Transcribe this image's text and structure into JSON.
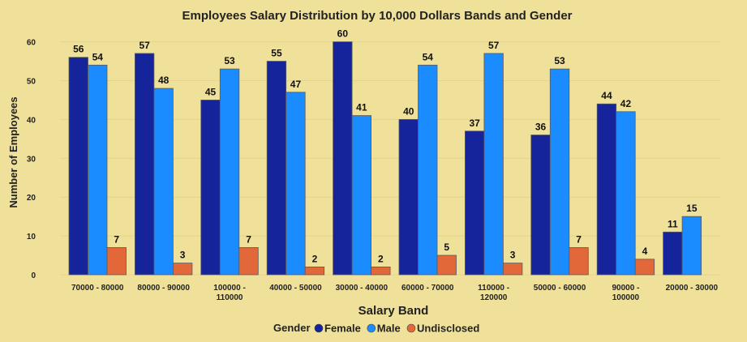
{
  "chart_data": {
    "type": "bar",
    "title": "Employees Salary Distribution by 10,000 Dollars Bands and Gender",
    "xlabel": "Salary Band",
    "ylabel": "Number of Employees",
    "ylim": [
      0,
      62
    ],
    "yticks": [
      0,
      10,
      20,
      30,
      40,
      50,
      60
    ],
    "grid": true,
    "legend": {
      "title": "Gender",
      "placement": "bottom"
    },
    "categories": [
      "70000 - 80000",
      "80000 - 90000",
      "100000 - 110000",
      "40000 - 50000",
      "30000 - 40000",
      "60000 - 70000",
      "110000 - 120000",
      "50000 - 60000",
      "90000 - 100000",
      "20000 - 30000"
    ],
    "series": [
      {
        "name": "Female",
        "color": "#15249a",
        "values": [
          56,
          57,
          45,
          55,
          60,
          40,
          37,
          36,
          44,
          11
        ]
      },
      {
        "name": "Male",
        "color": "#1a8cff",
        "values": [
          54,
          48,
          53,
          47,
          41,
          54,
          57,
          53,
          42,
          15
        ]
      },
      {
        "name": "Undisclosed",
        "color": "#e2683a",
        "values": [
          7,
          3,
          7,
          2,
          2,
          5,
          3,
          7,
          4,
          null
        ]
      }
    ]
  }
}
